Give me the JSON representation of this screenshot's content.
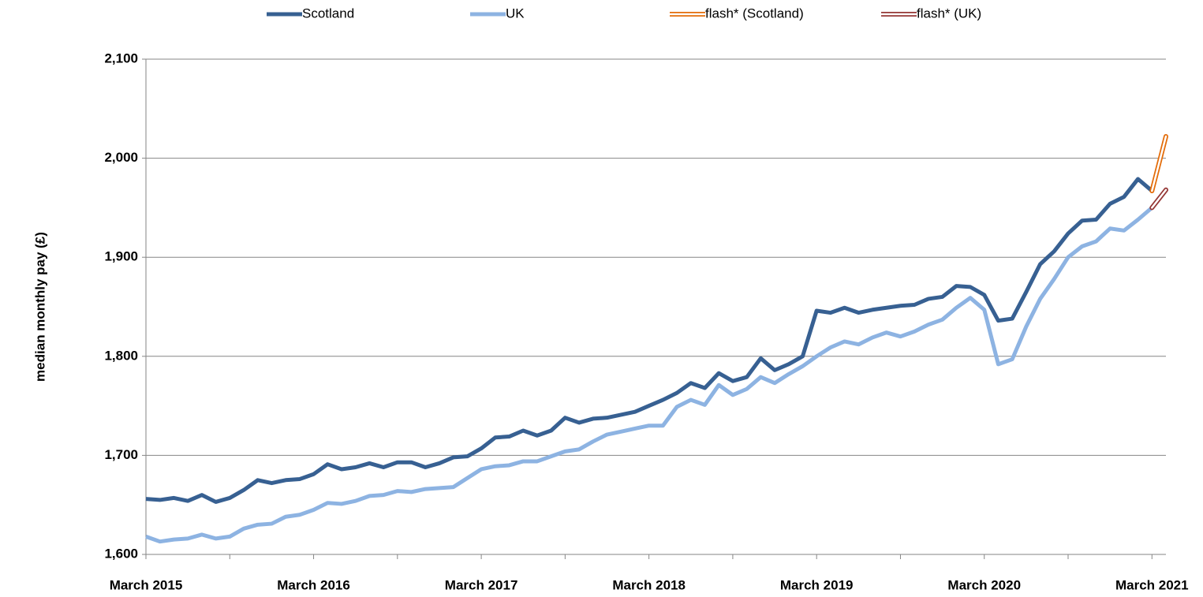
{
  "chart_data": {
    "type": "line",
    "y_axis_label": "median monthly pay (£)",
    "categories": [
      "March 2015",
      null,
      null,
      null,
      null,
      null,
      null,
      null,
      null,
      null,
      null,
      null,
      "March 2016",
      null,
      null,
      null,
      null,
      null,
      null,
      null,
      null,
      null,
      null,
      null,
      "March 2017",
      null,
      null,
      null,
      null,
      null,
      null,
      null,
      null,
      null,
      null,
      null,
      "March 2018",
      null,
      null,
      null,
      null,
      null,
      null,
      null,
      null,
      null,
      null,
      null,
      "March 2019",
      null,
      null,
      null,
      null,
      null,
      null,
      null,
      null,
      null,
      null,
      null,
      "March 2020",
      null,
      null,
      null,
      null,
      null,
      null,
      null,
      null,
      null,
      null,
      null,
      "March 2021",
      null
    ],
    "series": [
      {
        "name": "Scotland",
        "color": "#376092",
        "line_style": "solid",
        "values": [
          1656,
          1655,
          1657,
          1654,
          1660,
          1653,
          1657,
          1665,
          1675,
          1672,
          1675,
          1676,
          1681,
          1691,
          1686,
          1688,
          1692,
          1688,
          1693,
          1693,
          1688,
          1692,
          1698,
          1699,
          1707,
          1718,
          1719,
          1725,
          1720,
          1725,
          1738,
          1733,
          1737,
          1738,
          1741,
          1744,
          1750,
          1756,
          1763,
          1773,
          1768,
          1783,
          1775,
          1779,
          1798,
          1786,
          1792,
          1800,
          1846,
          1844,
          1849,
          1844,
          1847,
          1849,
          1851,
          1852,
          1858,
          1860,
          1871,
          1870,
          1862,
          1836,
          1838,
          1865,
          1893,
          1906,
          1924,
          1937,
          1938,
          1954,
          1961,
          1979,
          1967,
          null
        ]
      },
      {
        "name": "UK",
        "color": "#8db3e2",
        "line_style": "solid",
        "values": [
          1618,
          1613,
          1615,
          1616,
          1620,
          1616,
          1618,
          1626,
          1630,
          1631,
          1638,
          1640,
          1645,
          1652,
          1651,
          1654,
          1659,
          1660,
          1664,
          1663,
          1666,
          1667,
          1668,
          1677,
          1686,
          1689,
          1690,
          1694,
          1694,
          1699,
          1704,
          1706,
          1714,
          1721,
          1724,
          1727,
          1730,
          1730,
          1749,
          1756,
          1751,
          1771,
          1761,
          1767,
          1779,
          1773,
          1782,
          1790,
          1800,
          1809,
          1815,
          1812,
          1819,
          1824,
          1820,
          1825,
          1832,
          1837,
          1849,
          1859,
          1847,
          1792,
          1797,
          1830,
          1858,
          1878,
          1900,
          1911,
          1916,
          1929,
          1927,
          1938,
          1950,
          null
        ]
      },
      {
        "name": "flash* (Scotland)",
        "color": "#e36c09",
        "line_style": "hollow",
        "values": [
          null,
          null,
          null,
          null,
          null,
          null,
          null,
          null,
          null,
          null,
          null,
          null,
          null,
          null,
          null,
          null,
          null,
          null,
          null,
          null,
          null,
          null,
          null,
          null,
          null,
          null,
          null,
          null,
          null,
          null,
          null,
          null,
          null,
          null,
          null,
          null,
          null,
          null,
          null,
          null,
          null,
          null,
          null,
          null,
          null,
          null,
          null,
          null,
          null,
          null,
          null,
          null,
          null,
          null,
          null,
          null,
          null,
          null,
          null,
          null,
          null,
          null,
          null,
          null,
          null,
          null,
          null,
          null,
          null,
          null,
          null,
          null,
          1967,
          2022
        ]
      },
      {
        "name": "flash* (UK)",
        "color": "#953735",
        "line_style": "hollow",
        "values": [
          null,
          null,
          null,
          null,
          null,
          null,
          null,
          null,
          null,
          null,
          null,
          null,
          null,
          null,
          null,
          null,
          null,
          null,
          null,
          null,
          null,
          null,
          null,
          null,
          null,
          null,
          null,
          null,
          null,
          null,
          null,
          null,
          null,
          null,
          null,
          null,
          null,
          null,
          null,
          null,
          null,
          null,
          null,
          null,
          null,
          null,
          null,
          null,
          null,
          null,
          null,
          null,
          null,
          null,
          null,
          null,
          null,
          null,
          null,
          null,
          null,
          null,
          null,
          null,
          null,
          null,
          null,
          null,
          null,
          null,
          null,
          null,
          1950,
          1968
        ]
      }
    ],
    "ylim": [
      1600,
      2100
    ],
    "yticks": [
      {
        "value": 1600,
        "label": "1,600"
      },
      {
        "value": 1700,
        "label": "1,700"
      },
      {
        "value": 1800,
        "label": "1,800"
      },
      {
        "value": 1900,
        "label": "1,900"
      },
      {
        "value": 2000,
        "label": "2,000"
      },
      {
        "value": 2100,
        "label": "2,100"
      }
    ],
    "grid": true,
    "legend": "top"
  }
}
